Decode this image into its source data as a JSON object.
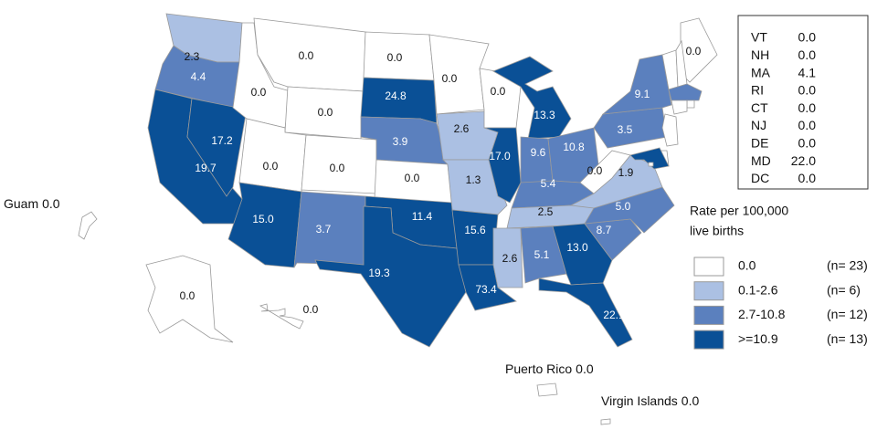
{
  "states": {
    "values": [
      2.3,
      4.4,
      19.7,
      17.2,
      0,
      0,
      0,
      0,
      0,
      15.0,
      3.7,
      0,
      24.8,
      3.9,
      0,
      11.4,
      19.3,
      0,
      2.6,
      1.3,
      15.6,
      73.4,
      0,
      17.0,
      13.3,
      9.6,
      10.8,
      5.4,
      2.5,
      2.6,
      5.1,
      13.0,
      22.1,
      8.7,
      5.0,
      1.9,
      0,
      3.5,
      9.1,
      0,
      0,
      0
    ],
    "value_labels": [
      "2.3",
      "4.4",
      "19.7",
      "17.2",
      "0.0",
      "0.0",
      "0.0",
      "0.0",
      "0.0",
      "15.0",
      "3.7",
      "0.0",
      "24.8",
      "3.9",
      "0.0",
      "11.4",
      "19.3",
      "0.0",
      "2.6",
      "1.3",
      "15.6",
      "73.4",
      "0.0",
      "17.0",
      "13.3",
      "9.6",
      "10.8",
      "5.4",
      "2.5",
      "2.6",
      "5.1",
      "13.0",
      "22.1",
      "8.7",
      "5.0",
      "1.9",
      "0.0",
      "3.5",
      "9.1",
      "0.0",
      "0.0",
      "0.0"
    ]
  },
  "table": {
    "rows": [
      {
        "state": "VT",
        "value": 0,
        "value_label": "0.0"
      },
      {
        "state": "NH",
        "value": 0,
        "value_label": "0.0"
      },
      {
        "state": "MA",
        "value": 4.1,
        "value_label": "4.1"
      },
      {
        "state": "RI",
        "value": 0,
        "value_label": "0.0"
      },
      {
        "state": "CT",
        "value": 0,
        "value_label": "0.0"
      },
      {
        "state": "NJ",
        "value": 0,
        "value_label": "0.0"
      },
      {
        "state": "DE",
        "value": 0,
        "value_label": "0.0"
      },
      {
        "state": "MD",
        "value": 22.0,
        "value_label": "22.0"
      },
      {
        "state": "DC",
        "value": 0,
        "value_label": "0.0"
      }
    ]
  },
  "territories": [
    {
      "name": "Guam",
      "value": 0,
      "value_label": "0.0"
    },
    {
      "name": "Puerto Rico",
      "value": 0,
      "value_label": "0.0"
    },
    {
      "name": "Virgin Islands",
      "value": 0,
      "value_label": "0.0"
    }
  ],
  "legend": {
    "title": [
      "Rate per 100,000",
      "live births"
    ],
    "items": [
      {
        "label": "0.0",
        "min": 0,
        "max": 0,
        "color": "#ffffff",
        "n": "(n= 23)"
      },
      {
        "label": "0.1-2.6",
        "min": 0.1,
        "max": 2.6,
        "color": "#abc0e3",
        "n": "(n=  6)"
      },
      {
        "label": "2.7-10.8",
        "min": 2.7,
        "max": 10.8,
        "color": "#5b80be",
        "n": "(n= 12)"
      },
      {
        "label": ">=10.9",
        "min": 10.9,
        "max": null,
        "color": "#0a5096",
        "n": "(n= 13)"
      }
    ]
  }
}
